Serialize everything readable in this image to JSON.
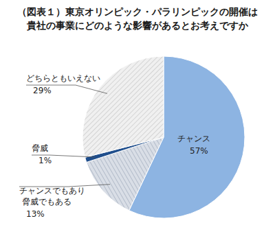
{
  "chart_data": {
    "type": "pie",
    "title": "（図表１）東京オリンピック・パラリンピックの開催は\n貴社の事業にどのような影響があるとお考えですか",
    "categories": [
      "チャンス",
      "チャンスでもあり\n脅威でもある",
      "脅威",
      "どちらともいえない"
    ],
    "values": [
      57,
      13,
      1,
      29
    ],
    "value_labels": [
      "57%",
      "13%",
      "1%",
      "29%"
    ],
    "data_labels": true,
    "colors": [
      "#8db4e2",
      "#d9dee6",
      "#1f4e8c",
      "#f0f0f0"
    ]
  }
}
